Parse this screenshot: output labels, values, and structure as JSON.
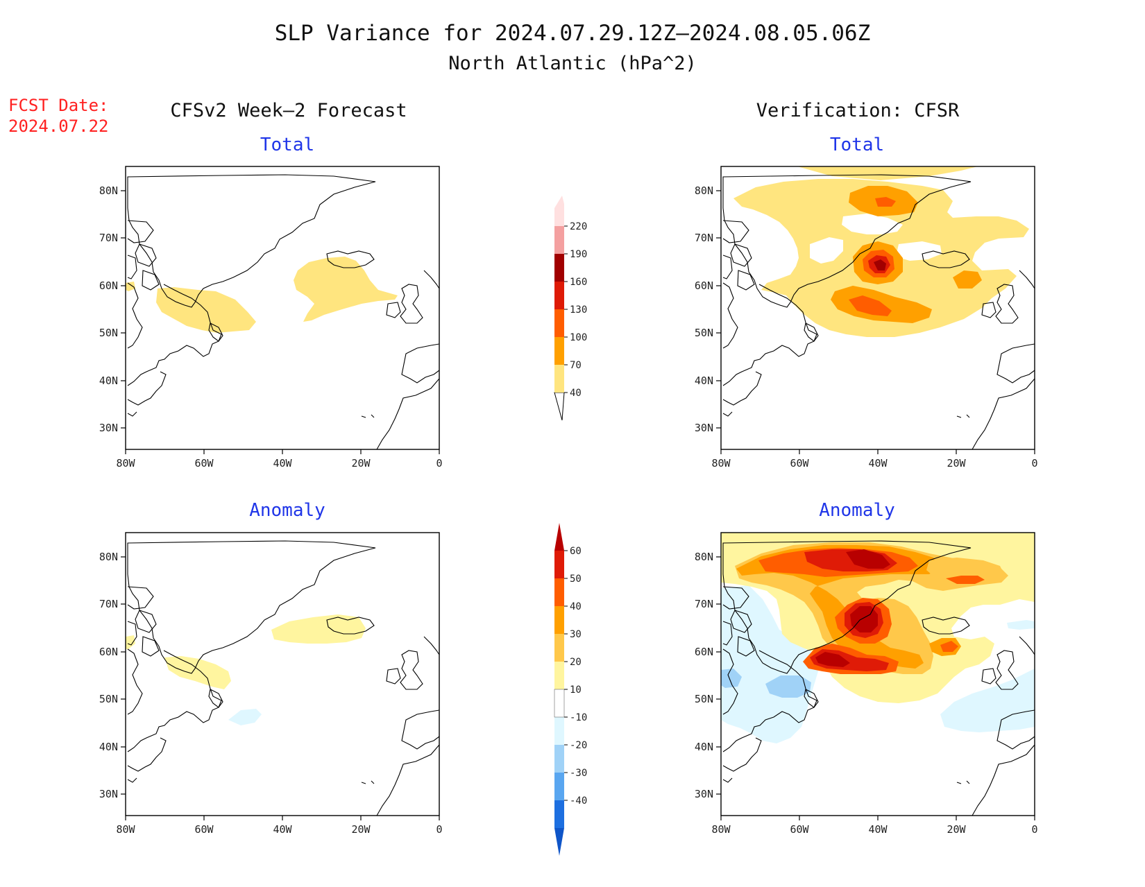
{
  "title": "SLP Variance for 2024.07.29.12Z—2024.08.05.06Z",
  "subtitle": "North Atlantic (hPa^2)",
  "fcst_label": "FCST Date:",
  "fcst_date": "2024.07.22",
  "left_header": "CFSv2 Week—2 Forecast",
  "right_header": "Verification: CFSR",
  "panel_titles": {
    "fcst_total": "Total",
    "obs_total": "Total",
    "fcst_anom": "Anomaly",
    "obs_anom": "Anomaly"
  },
  "axes": {
    "lon_ticks": [
      "80W",
      "60W",
      "40W",
      "20W",
      "0"
    ],
    "lat_ticks": [
      "80N",
      "70N",
      "60N",
      "50N",
      "40N",
      "30N"
    ]
  },
  "total_colorbar": {
    "labels": [
      "40",
      "70",
      "100",
      "130",
      "160",
      "190",
      "220"
    ],
    "colors": [
      "#ffe57f",
      "#ffa000",
      "#ff5d00",
      "#de1a06",
      "#a10000",
      "#f4a0a0",
      "#ffe0e0"
    ]
  },
  "anomaly_colorbar": {
    "labels": [
      "60",
      "50",
      "40",
      "30",
      "20",
      "10",
      "-10",
      "-20",
      "-30",
      "-40"
    ],
    "colors": [
      "#b80000",
      "#df1b07",
      "#ff5d00",
      "#ffa000",
      "#ffc84a",
      "#fff59f",
      "#ffffff",
      "#dff7ff",
      "#a0d2f7",
      "#59a6f0",
      "#1d6fe0",
      "#0f55c8"
    ]
  },
  "fill_colors": {
    "level1": "#ffe57f",
    "level2": "#ffa000",
    "level3": "#ff5d00",
    "level4": "#de1a06",
    "level5": "#a10000",
    "anom_pos10": "#fff59f",
    "anom_pos20": "#ffc84a",
    "anom_pos30": "#ffa000",
    "anom_pos40": "#ff5d00",
    "anom_pos50": "#df1b07",
    "anom_pos60": "#b80000",
    "anom_neg10": "#dff7ff",
    "anom_neg20": "#a0d2f7"
  }
}
